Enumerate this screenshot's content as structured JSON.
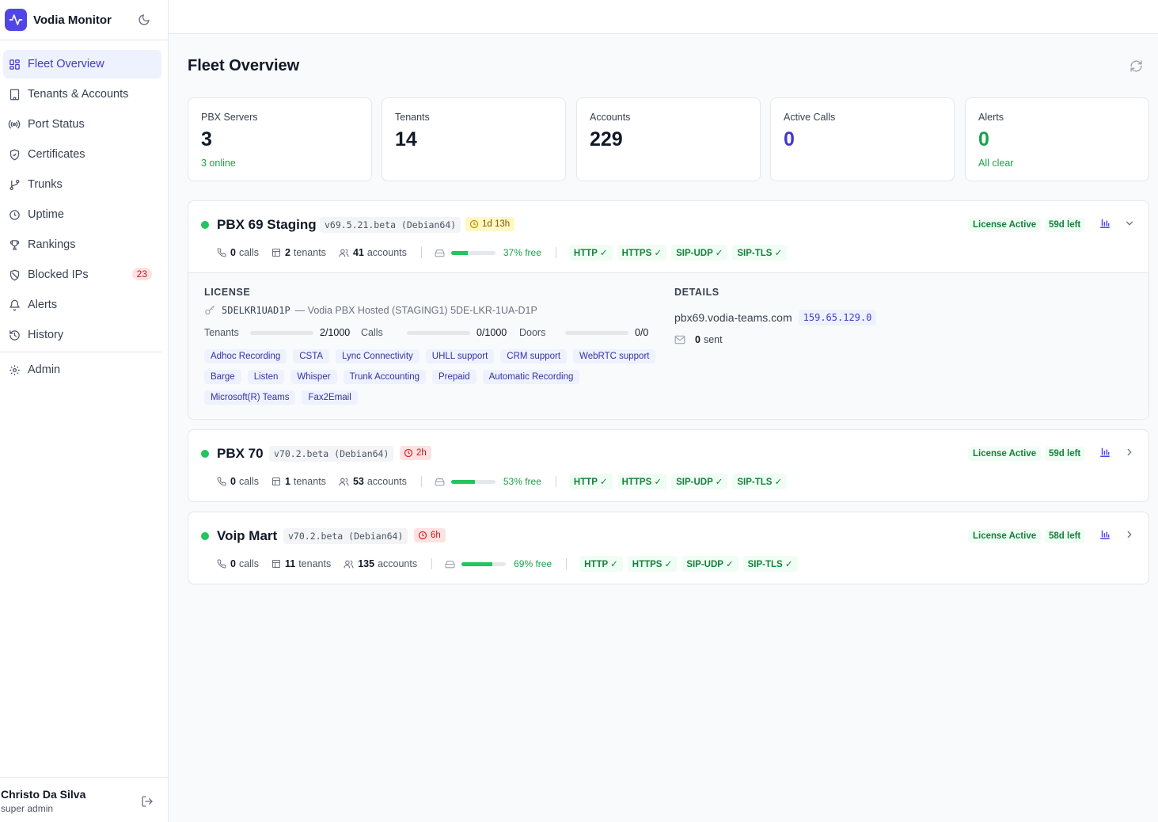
{
  "app": {
    "name": "Vodia Monitor"
  },
  "nav": [
    {
      "label": "Fleet Overview",
      "icon": "grid-icon",
      "active": true
    },
    {
      "label": "Tenants & Accounts",
      "icon": "building-icon"
    },
    {
      "label": "Port Status",
      "icon": "radio-icon"
    },
    {
      "label": "Certificates",
      "icon": "shield-check-icon"
    },
    {
      "label": "Trunks",
      "icon": "git-branch-icon"
    },
    {
      "label": "Uptime",
      "icon": "clock-icon"
    },
    {
      "label": "Rankings",
      "icon": "trophy-icon"
    },
    {
      "label": "Blocked IPs",
      "icon": "shield-off-icon",
      "badge": "23"
    },
    {
      "label": "Alerts",
      "icon": "bell-icon"
    },
    {
      "label": "History",
      "icon": "history-icon"
    },
    {
      "label": "Admin",
      "icon": "gear-icon"
    }
  ],
  "user": {
    "name": "Christo Da Silva",
    "role": "super admin"
  },
  "page": {
    "title": "Fleet Overview"
  },
  "stats": [
    {
      "label": "PBX Servers",
      "value": "3",
      "sub": "3 online"
    },
    {
      "label": "Tenants",
      "value": "14",
      "sub": ""
    },
    {
      "label": "Accounts",
      "value": "229",
      "sub": ""
    },
    {
      "label": "Active Calls",
      "value": "0",
      "sub": ""
    },
    {
      "label": "Alerts",
      "value": "0",
      "sub": "All clear"
    }
  ],
  "servers": [
    {
      "name": "PBX 69 Staging",
      "version": "v69.5.21.beta (Debian64)",
      "uptime": "1d 13h",
      "license_status": "License Active",
      "days_left": "59d left",
      "calls": "0",
      "calls_label": "calls",
      "tenants": "2",
      "tenants_label": "tenants",
      "accounts": "41",
      "accounts_label": "accounts",
      "disk_free_pct": 37,
      "disk_text": "37% free",
      "ports": [
        "HTTP ✓",
        "HTTPS ✓",
        "SIP-UDP ✓",
        "SIP-TLS ✓"
      ],
      "expanded": true,
      "license": {
        "title": "LICENSE",
        "code": "5DELKR1UAD1P",
        "desc": "— Vodia PBX Hosted (STAGING1) 5DE-LKR-1UA-D1P",
        "usage": [
          {
            "label": "Tenants",
            "value": "2/1000",
            "fraction": 0.002
          },
          {
            "label": "Calls",
            "value": "0/1000",
            "fraction": 0
          },
          {
            "label": "Doors",
            "value": "0/0",
            "fraction": 0
          }
        ],
        "features": [
          "Adhoc Recording",
          "CSTA",
          "Lync Connectivity",
          "UHLL support",
          "CRM support",
          "WebRTC support",
          "Barge",
          "Listen",
          "Whisper",
          "Trunk Accounting",
          "Prepaid",
          "Automatic Recording",
          "Microsoft(R) Teams",
          "Fax2Email"
        ]
      },
      "details": {
        "title": "DETAILS",
        "host": "pbx69.vodia-teams.com",
        "ip": "159.65.129.0",
        "sent_count": "0",
        "sent_label": "sent"
      }
    },
    {
      "name": "PBX 70",
      "version": "v70.2.beta (Debian64)",
      "uptime": "2h",
      "license_status": "License Active",
      "days_left": "59d left",
      "calls": "0",
      "calls_label": "calls",
      "tenants": "1",
      "tenants_label": "tenants",
      "accounts": "53",
      "accounts_label": "accounts",
      "disk_free_pct": 53,
      "disk_text": "53% free",
      "ports": [
        "HTTP ✓",
        "HTTPS ✓",
        "SIP-UDP ✓",
        "SIP-TLS ✓"
      ],
      "expanded": false
    },
    {
      "name": "Voip Mart",
      "version": "v70.2.beta (Debian64)",
      "uptime": "6h",
      "license_status": "License Active",
      "days_left": "58d left",
      "calls": "0",
      "calls_label": "calls",
      "tenants": "11",
      "tenants_label": "tenants",
      "accounts": "135",
      "accounts_label": "accounts",
      "disk_free_pct": 69,
      "disk_text": "69% free",
      "ports": [
        "HTTP ✓",
        "HTTPS ✓",
        "SIP-UDP ✓",
        "SIP-TLS ✓"
      ],
      "expanded": false
    }
  ],
  "colors": {
    "accent": "#4f46e5",
    "success": "#16a34a",
    "danger": "#b91c1c"
  }
}
